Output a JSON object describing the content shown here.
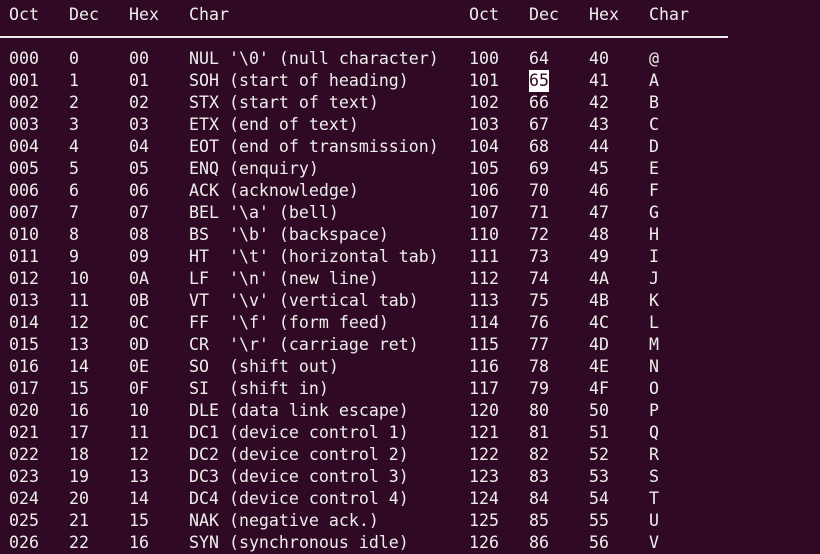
{
  "headers": [
    "Oct",
    "Dec",
    "Hex",
    "Char",
    "Oct",
    "Dec",
    "Hex",
    "Char"
  ],
  "colors": {
    "background": "#300a24",
    "foreground": "#eeeeec",
    "cursor": "#ffffff"
  },
  "cursor": {
    "row": 1,
    "column": "right_dec",
    "text": "65"
  },
  "rows": [
    [
      "000",
      "0",
      "00",
      "NUL '\\0' (null character)",
      "100",
      "64",
      "40",
      "@"
    ],
    [
      "001",
      "1",
      "01",
      "SOH (start of heading)",
      "101",
      "65",
      "41",
      "A"
    ],
    [
      "002",
      "2",
      "02",
      "STX (start of text)",
      "102",
      "66",
      "42",
      "B"
    ],
    [
      "003",
      "3",
      "03",
      "ETX (end of text)",
      "103",
      "67",
      "43",
      "C"
    ],
    [
      "004",
      "4",
      "04",
      "EOT (end of transmission)",
      "104",
      "68",
      "44",
      "D"
    ],
    [
      "005",
      "5",
      "05",
      "ENQ (enquiry)",
      "105",
      "69",
      "45",
      "E"
    ],
    [
      "006",
      "6",
      "06",
      "ACK (acknowledge)",
      "106",
      "70",
      "46",
      "F"
    ],
    [
      "007",
      "7",
      "07",
      "BEL '\\a' (bell)",
      "107",
      "71",
      "47",
      "G"
    ],
    [
      "010",
      "8",
      "08",
      "BS  '\\b' (backspace)",
      "110",
      "72",
      "48",
      "H"
    ],
    [
      "011",
      "9",
      "09",
      "HT  '\\t' (horizontal tab)",
      "111",
      "73",
      "49",
      "I"
    ],
    [
      "012",
      "10",
      "0A",
      "LF  '\\n' (new line)",
      "112",
      "74",
      "4A",
      "J"
    ],
    [
      "013",
      "11",
      "0B",
      "VT  '\\v' (vertical tab)",
      "113",
      "75",
      "4B",
      "K"
    ],
    [
      "014",
      "12",
      "0C",
      "FF  '\\f' (form feed)",
      "114",
      "76",
      "4C",
      "L"
    ],
    [
      "015",
      "13",
      "0D",
      "CR  '\\r' (carriage ret)",
      "115",
      "77",
      "4D",
      "M"
    ],
    [
      "016",
      "14",
      "0E",
      "SO  (shift out)",
      "116",
      "78",
      "4E",
      "N"
    ],
    [
      "017",
      "15",
      "0F",
      "SI  (shift in)",
      "117",
      "79",
      "4F",
      "O"
    ],
    [
      "020",
      "16",
      "10",
      "DLE (data link escape)",
      "120",
      "80",
      "50",
      "P"
    ],
    [
      "021",
      "17",
      "11",
      "DC1 (device control 1)",
      "121",
      "81",
      "51",
      "Q"
    ],
    [
      "022",
      "18",
      "12",
      "DC2 (device control 2)",
      "122",
      "82",
      "52",
      "R"
    ],
    [
      "023",
      "19",
      "13",
      "DC3 (device control 3)",
      "123",
      "83",
      "53",
      "S"
    ],
    [
      "024",
      "20",
      "14",
      "DC4 (device control 4)",
      "124",
      "84",
      "54",
      "T"
    ],
    [
      "025",
      "21",
      "15",
      "NAK (negative ack.)",
      "125",
      "85",
      "55",
      "U"
    ],
    [
      "026",
      "22",
      "16",
      "SYN (synchronous idle)",
      "126",
      "86",
      "56",
      "V"
    ]
  ]
}
